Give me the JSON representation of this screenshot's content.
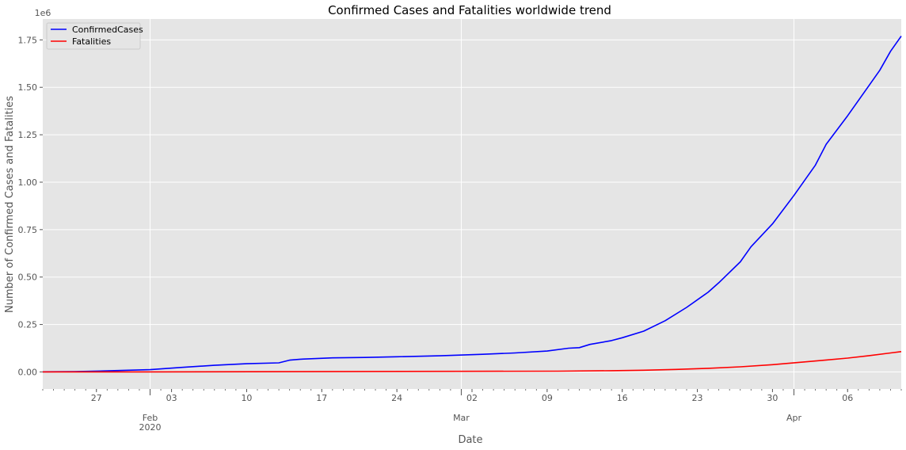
{
  "chart_data": {
    "type": "line",
    "title": "Confirmed Cases and Fatalities worldwide trend",
    "xlabel": "Date",
    "ylabel": "Number of Confirmed Cases and Fatalities",
    "y_offset_label": "1e6",
    "x_range": [
      "2020-01-22",
      "2020-04-11"
    ],
    "ylim": [
      -0.09,
      1.86
    ],
    "grid": true,
    "legend_position": "top-left",
    "y_ticks": [
      {
        "value": 0.0,
        "label": "0.00"
      },
      {
        "value": 0.25,
        "label": "0.25"
      },
      {
        "value": 0.5,
        "label": "0.50"
      },
      {
        "value": 0.75,
        "label": "0.75"
      },
      {
        "value": 1.0,
        "label": "1.00"
      },
      {
        "value": 1.25,
        "label": "1.25"
      },
      {
        "value": 1.5,
        "label": "1.50"
      },
      {
        "value": 1.75,
        "label": "1.75"
      }
    ],
    "x_major_ticks": [
      {
        "date": "2020-02-01",
        "label": "Feb",
        "sublabel": "2020"
      },
      {
        "date": "2020-03-01",
        "label": "Mar",
        "sublabel": ""
      },
      {
        "date": "2020-04-01",
        "label": "Apr",
        "sublabel": ""
      }
    ],
    "x_minor_ticks": [
      {
        "date": "2020-01-27",
        "label": "27"
      },
      {
        "date": "2020-02-03",
        "label": "03"
      },
      {
        "date": "2020-02-10",
        "label": "10"
      },
      {
        "date": "2020-02-17",
        "label": "17"
      },
      {
        "date": "2020-02-24",
        "label": "24"
      },
      {
        "date": "2020-03-02",
        "label": "02"
      },
      {
        "date": "2020-03-09",
        "label": "09"
      },
      {
        "date": "2020-03-16",
        "label": "16"
      },
      {
        "date": "2020-03-23",
        "label": "23"
      },
      {
        "date": "2020-03-30",
        "label": "30"
      },
      {
        "date": "2020-04-06",
        "label": "06"
      }
    ],
    "series": [
      {
        "name": "ConfirmedCases",
        "color": "#0000ff",
        "points": [
          [
            "2020-01-22",
            0.0006
          ],
          [
            "2020-01-25",
            0.0014
          ],
          [
            "2020-01-28",
            0.0055
          ],
          [
            "2020-02-01",
            0.012
          ],
          [
            "2020-02-04",
            0.024
          ],
          [
            "2020-02-07",
            0.035
          ],
          [
            "2020-02-10",
            0.043
          ],
          [
            "2020-02-13",
            0.048
          ],
          [
            "2020-02-14",
            0.062
          ],
          [
            "2020-02-15",
            0.067
          ],
          [
            "2020-02-18",
            0.074
          ],
          [
            "2020-02-21",
            0.076
          ],
          [
            "2020-02-24",
            0.08
          ],
          [
            "2020-02-28",
            0.085
          ],
          [
            "2020-03-03",
            0.093
          ],
          [
            "2020-03-06",
            0.1
          ],
          [
            "2020-03-09",
            0.11
          ],
          [
            "2020-03-11",
            0.125
          ],
          [
            "2020-03-12",
            0.128
          ],
          [
            "2020-03-13",
            0.145
          ],
          [
            "2020-03-15",
            0.165
          ],
          [
            "2020-03-16",
            0.18
          ],
          [
            "2020-03-18",
            0.215
          ],
          [
            "2020-03-20",
            0.27
          ],
          [
            "2020-03-22",
            0.34
          ],
          [
            "2020-03-24",
            0.42
          ],
          [
            "2020-03-25",
            0.47
          ],
          [
            "2020-03-27",
            0.58
          ],
          [
            "2020-03-28",
            0.66
          ],
          [
            "2020-03-30",
            0.78
          ],
          [
            "2020-04-01",
            0.93
          ],
          [
            "2020-04-03",
            1.09
          ],
          [
            "2020-04-04",
            1.2
          ],
          [
            "2020-04-06",
            1.35
          ],
          [
            "2020-04-08",
            1.51
          ],
          [
            "2020-04-09",
            1.59
          ],
          [
            "2020-04-10",
            1.69
          ],
          [
            "2020-04-11",
            1.77
          ]
        ]
      },
      {
        "name": "Fatalities",
        "color": "#ff0000",
        "points": [
          [
            "2020-01-22",
            0.0
          ],
          [
            "2020-02-01",
            0.0003
          ],
          [
            "2020-02-15",
            0.0015
          ],
          [
            "2020-03-01",
            0.003
          ],
          [
            "2020-03-10",
            0.004
          ],
          [
            "2020-03-15",
            0.0065
          ],
          [
            "2020-03-18",
            0.009
          ],
          [
            "2020-03-21",
            0.013
          ],
          [
            "2020-03-24",
            0.019
          ],
          [
            "2020-03-27",
            0.027
          ],
          [
            "2020-03-30",
            0.038
          ],
          [
            "2020-04-02",
            0.053
          ],
          [
            "2020-04-04",
            0.063
          ],
          [
            "2020-04-06",
            0.073
          ],
          [
            "2020-04-08",
            0.086
          ],
          [
            "2020-04-10",
            0.1
          ],
          [
            "2020-04-11",
            0.107
          ]
        ]
      }
    ]
  }
}
